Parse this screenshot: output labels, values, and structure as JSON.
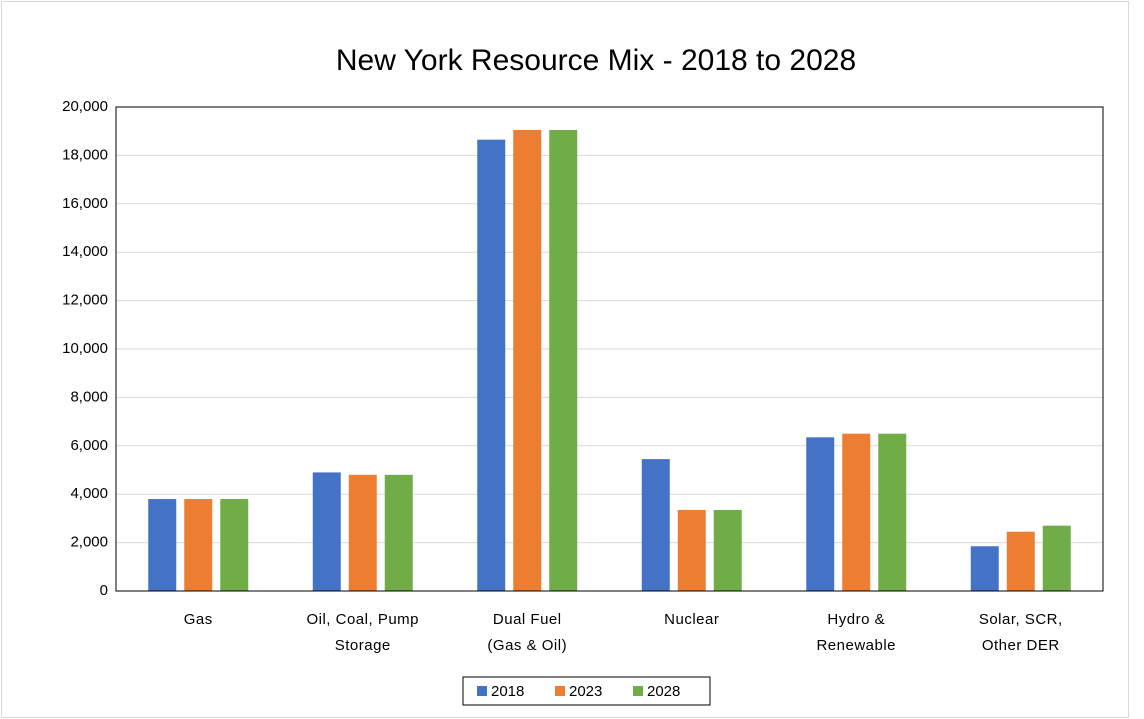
{
  "chart_data": {
    "type": "bar",
    "title": "New York Resource Mix - 2018 to 2028",
    "categories": [
      [
        "Gas"
      ],
      [
        "Oil, Coal, Pump",
        "Storage"
      ],
      [
        "Dual Fuel",
        "(Gas & Oil)"
      ],
      [
        "Nuclear"
      ],
      [
        "Hydro &",
        "Renewable"
      ],
      [
        "Solar, SCR,",
        "Other DER"
      ]
    ],
    "series": [
      {
        "name": "2018",
        "color": "#4472c4",
        "values": [
          3800,
          4900,
          18650,
          5450,
          6350,
          1850
        ]
      },
      {
        "name": "2023",
        "color": "#ed7d31",
        "values": [
          3800,
          4800,
          19050,
          3350,
          6500,
          2450
        ]
      },
      {
        "name": "2028",
        "color": "#70ad47",
        "values": [
          3800,
          4800,
          19050,
          3350,
          6500,
          2700
        ]
      }
    ],
    "ylim": [
      0,
      20000
    ],
    "yticks": [
      0,
      {
        "value": 2000,
        "label": "2,000"
      },
      {
        "value": 4000,
        "label": "4,000"
      },
      {
        "value": 6000,
        "label": "6,000"
      },
      {
        "value": 8000,
        "label": "8,000"
      },
      {
        "value": 10000,
        "label": "10,000"
      },
      {
        "value": 12000,
        "label": "12,000"
      },
      {
        "value": 14000,
        "label": "14,000"
      },
      {
        "value": 16000,
        "label": "16,000"
      },
      {
        "value": 18000,
        "label": "18,000"
      },
      {
        "value": 20000,
        "label": "20,000"
      }
    ],
    "grid": true,
    "legend": "bottom"
  }
}
